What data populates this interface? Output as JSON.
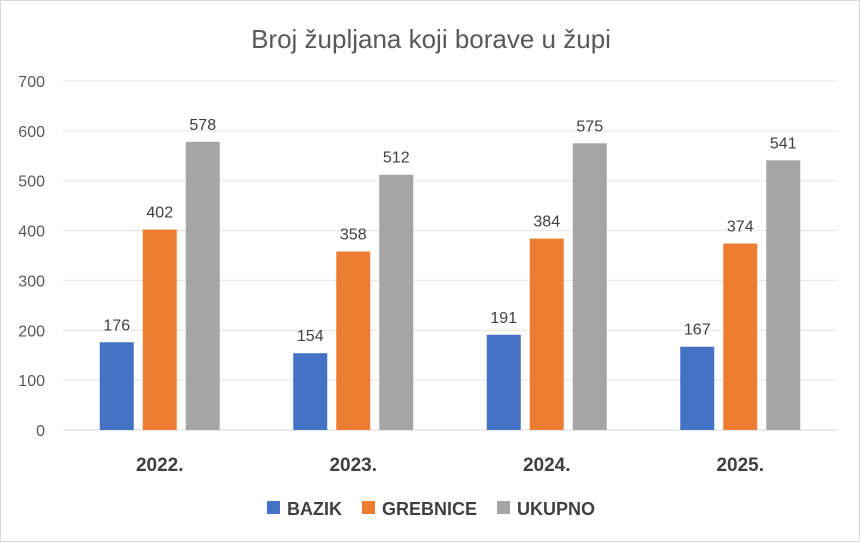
{
  "chart_data": {
    "type": "bar",
    "title": "Broj župljana koji borave u župi",
    "categories": [
      "2022.",
      "2023.",
      "2024.",
      "2025."
    ],
    "series": [
      {
        "name": "BAZIK",
        "color": "#4472c4",
        "values": [
          176,
          154,
          191,
          167
        ]
      },
      {
        "name": "GREBNICE",
        "color": "#ed7d31",
        "values": [
          402,
          358,
          384,
          374
        ]
      },
      {
        "name": "UKUPNO",
        "color": "#a5a5a5",
        "values": [
          578,
          512,
          575,
          541
        ]
      }
    ],
    "ylim": [
      0,
      700
    ],
    "yticks": [
      "0",
      "100",
      "200",
      "300",
      "400",
      "500",
      "600",
      "700"
    ],
    "grid": true,
    "legend_position": "bottom",
    "data_labels": true
  }
}
